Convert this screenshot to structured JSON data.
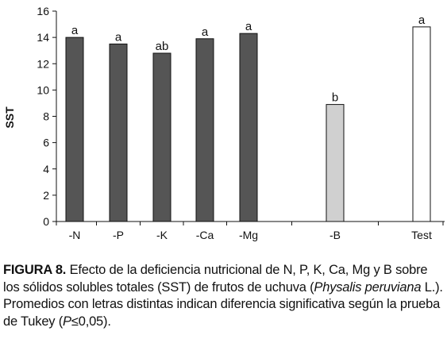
{
  "chart_data": {
    "type": "bar",
    "ylabel": "SST",
    "xlabel": "",
    "title": "",
    "ylim": [
      0,
      16
    ],
    "yticks": [
      0,
      2,
      4,
      6,
      8,
      10,
      12,
      14,
      16
    ],
    "categories": [
      "-N",
      "-P",
      "-K",
      "-Ca",
      "-Mg",
      "-B",
      "Test"
    ],
    "values": [
      14.0,
      13.5,
      12.8,
      13.9,
      14.3,
      8.9,
      14.8
    ],
    "significance": [
      "a",
      "a",
      "ab",
      "a",
      "a",
      "b",
      "a"
    ],
    "bar_fill_colors": [
      "#555555",
      "#555555",
      "#555555",
      "#555555",
      "#555555",
      "#d0d0d0",
      "#ffffff"
    ],
    "grid": false,
    "legend": "none"
  },
  "caption": {
    "label": "FIGURA 8.",
    "text_1": " Efecto de la deficiencia nutricional de N, P, K, Ca, Mg y B sobre los sólidos solubles totales (SST) de frutos de uchuva (",
    "species": "Physalis peruviana",
    "text_2": " L.). Promedios con letras distintas indican diferencia significativa según la prueba de Tukey (",
    "p_symbol": "P",
    "text_3": "≤0,05)."
  }
}
